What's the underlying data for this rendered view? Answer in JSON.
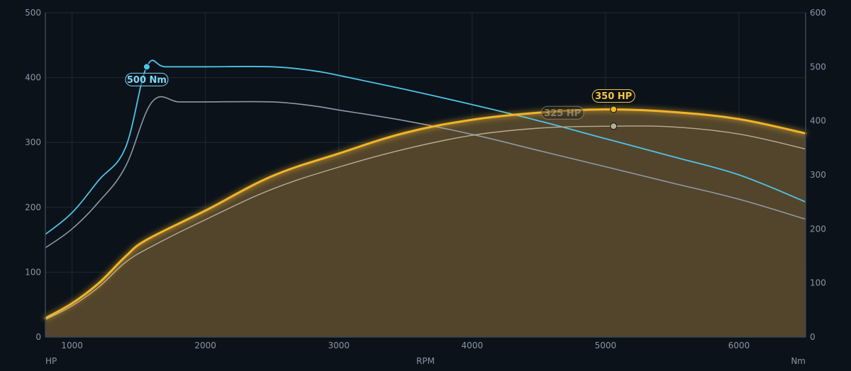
{
  "chart_data": {
    "type": "line",
    "xlabel": "RPM",
    "y_left_label": "HP",
    "y_right_label": "Nm",
    "xlim": [
      800,
      6500
    ],
    "x_ticks": [
      1000,
      2000,
      3000,
      4000,
      5000,
      6000
    ],
    "y_left_lim": [
      0,
      500
    ],
    "y_left_ticks": [
      0,
      100,
      200,
      300,
      400,
      500
    ],
    "y_right_lim": [
      0,
      600
    ],
    "y_right_ticks": [
      0,
      100,
      200,
      300,
      400,
      500,
      600
    ],
    "grid": true,
    "colors": {
      "background": "#0b121a",
      "grid": "#1f2a36",
      "axis": "#3a4654",
      "hp_tuned": "#f0b429",
      "hp_fill": "#5a4a2c",
      "hp_stock": "#b5ad98",
      "torque_tuned": "#4fc3e8",
      "torque_stock": "#8c9aa8"
    },
    "series": [
      {
        "key": "torque_tuned",
        "axis": "right",
        "x": [
          800,
          1000,
          1200,
          1400,
          1560,
          1700,
          2000,
          2500,
          2800,
          3000,
          3500,
          4000,
          4500,
          5000,
          5500,
          6000,
          6500
        ],
        "y": [
          190,
          230,
          290,
          350,
          500,
          500,
          500,
          500,
          493,
          484,
          458,
          430,
          400,
          367,
          334,
          300,
          250
        ]
      },
      {
        "key": "torque_stock",
        "axis": "right",
        "x": [
          800,
          1000,
          1200,
          1400,
          1600,
          1800,
          2000,
          2500,
          2800,
          3000,
          3500,
          4000,
          4500,
          5000,
          5500,
          6000,
          6500
        ],
        "y": [
          165,
          200,
          250,
          315,
          435,
          435,
          435,
          435,
          428,
          420,
          400,
          375,
          345,
          315,
          285,
          255,
          218
        ]
      },
      {
        "key": "hp_stock",
        "axis": "left",
        "x": [
          800,
          1000,
          1200,
          1400,
          1600,
          2000,
          2500,
          3000,
          3500,
          4000,
          4500,
          5000,
          5500,
          6000,
          6500
        ],
        "y": [
          27,
          48,
          77,
          115,
          140,
          181,
          228,
          262,
          290,
          311,
          322,
          325,
          324,
          313,
          290
        ]
      },
      {
        "key": "hp_tuned",
        "axis": "left",
        "x": [
          800,
          1000,
          1200,
          1400,
          1560,
          2000,
          2500,
          3000,
          3500,
          4000,
          4500,
          5000,
          5500,
          6000,
          6500
        ],
        "y": [
          29,
          52,
          83,
          124,
          150,
          195,
          248,
          283,
          315,
          335,
          346,
          351,
          347,
          336,
          314
        ]
      }
    ],
    "markers": [
      {
        "series": "torque_tuned",
        "x": 1560,
        "y": 500,
        "label": "500 Nm"
      },
      {
        "series": "hp_tuned",
        "x": 5060,
        "y": 351,
        "label": "350 HP"
      },
      {
        "series": "hp_stock",
        "x": 5060,
        "y": 325,
        "label": "325 HP"
      }
    ]
  }
}
